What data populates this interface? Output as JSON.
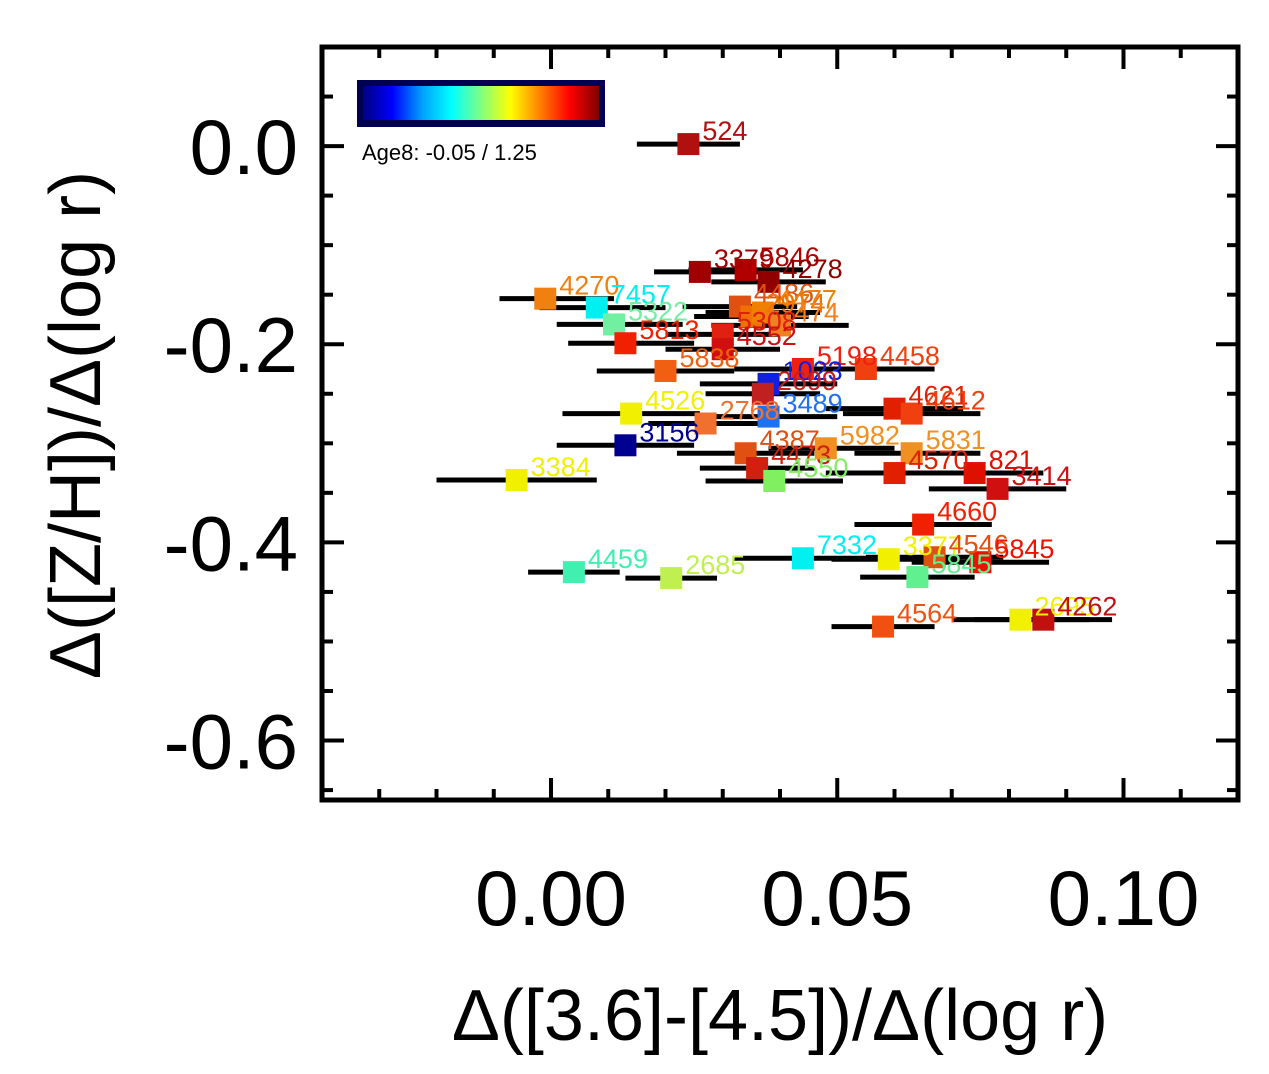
{
  "chart_data": {
    "type": "scatter",
    "xlabel": "Δ([3.6]-[4.5])/Δ(log r)",
    "ylabel": "Δ([Z/H])/Δ(log r)",
    "xlim": [
      -0.04,
      0.12
    ],
    "ylim": [
      -0.66,
      0.1
    ],
    "x_ticks": [
      {
        "value": 0.0,
        "label": "0.00"
      },
      {
        "value": 0.05,
        "label": "0.05"
      },
      {
        "value": 0.1,
        "label": "0.10"
      }
    ],
    "y_ticks": [
      {
        "value": 0.0,
        "label": "0.0"
      },
      {
        "value": -0.2,
        "label": "-0.2"
      },
      {
        "value": -0.4,
        "label": "-0.4"
      },
      {
        "value": -0.6,
        "label": "-0.6"
      }
    ],
    "colorbar": {
      "label": "Age8: -0.05 / 1.25",
      "colors": [
        "#000080",
        "#0000ff",
        "#00a0ff",
        "#00ffff",
        "#80ff80",
        "#ffff00",
        "#ff8000",
        "#ff0000",
        "#800000"
      ]
    },
    "points": [
      {
        "label": "524",
        "x": 0.024,
        "y": 0.002,
        "xerr_lo": 0.009,
        "xerr_hi": 0.009,
        "color": "#b01010"
      },
      {
        "label": "3379",
        "x": 0.026,
        "y": -0.127,
        "xerr_lo": 0.008,
        "xerr_hi": 0.012,
        "color": "#a00000"
      },
      {
        "label": "5846",
        "x": 0.034,
        "y": -0.125,
        "xerr_lo": 0.01,
        "xerr_hi": 0.01,
        "color": "#b00000"
      },
      {
        "label": "4278",
        "x": 0.038,
        "y": -0.137,
        "xerr_lo": 0.01,
        "xerr_hi": 0.01,
        "color": "#900000"
      },
      {
        "label": "4270",
        "x": -0.001,
        "y": -0.154,
        "xerr_lo": 0.008,
        "xerr_hi": 0.012,
        "color": "#f08010"
      },
      {
        "label": "7457",
        "x": 0.008,
        "y": -0.163,
        "xerr_lo": 0.01,
        "xerr_hi": 0.012,
        "color": "#00f0f0"
      },
      {
        "label": "4486",
        "x": 0.033,
        "y": -0.162,
        "xerr_lo": 0.01,
        "xerr_hi": 0.01,
        "color": "#e05010"
      },
      {
        "label": "2974",
        "x": 0.035,
        "y": -0.172,
        "xerr_lo": 0.01,
        "xerr_hi": 0.01,
        "color": "#f07000"
      },
      {
        "label": "4477",
        "x": 0.037,
        "y": -0.168,
        "xerr_lo": 0.01,
        "xerr_hi": 0.01,
        "color": "#f08000"
      },
      {
        "label": "474",
        "x": 0.04,
        "y": -0.181,
        "xerr_lo": 0.012,
        "xerr_hi": 0.012,
        "color": "#f08020"
      },
      {
        "label": "5322",
        "x": 0.011,
        "y": -0.18,
        "xerr_lo": 0.01,
        "xerr_hi": 0.012,
        "color": "#70f0a0"
      },
      {
        "label": "5813",
        "x": 0.013,
        "y": -0.199,
        "xerr_lo": 0.01,
        "xerr_hi": 0.012,
        "color": "#f02000"
      },
      {
        "label": "5308",
        "x": 0.03,
        "y": -0.19,
        "xerr_lo": 0.01,
        "xerr_hi": 0.01,
        "color": "#e02010"
      },
      {
        "label": "4552",
        "x": 0.03,
        "y": -0.205,
        "xerr_lo": 0.01,
        "xerr_hi": 0.01,
        "color": "#d01010"
      },
      {
        "label": "5838",
        "x": 0.02,
        "y": -0.227,
        "xerr_lo": 0.012,
        "xerr_hi": 0.012,
        "color": "#f06010"
      },
      {
        "label": "5198",
        "x": 0.044,
        "y": -0.225,
        "xerr_lo": 0.012,
        "xerr_hi": 0.012,
        "color": "#f02010"
      },
      {
        "label": "4458",
        "x": 0.055,
        "y": -0.225,
        "xerr_lo": 0.012,
        "xerr_hi": 0.012,
        "color": "#f04010"
      },
      {
        "label": "1023",
        "x": 0.038,
        "y": -0.24,
        "xerr_lo": 0.012,
        "xerr_hi": 0.012,
        "color": "#1020e0"
      },
      {
        "label": "2699",
        "x": 0.037,
        "y": -0.25,
        "xerr_lo": 0.01,
        "xerr_hi": 0.01,
        "color": "#c02020"
      },
      {
        "label": "4621",
        "x": 0.06,
        "y": -0.265,
        "xerr_lo": 0.012,
        "xerr_hi": 0.012,
        "color": "#e02000"
      },
      {
        "label": "4612",
        "x": 0.063,
        "y": -0.27,
        "xerr_lo": 0.012,
        "xerr_hi": 0.012,
        "color": "#f04010"
      },
      {
        "label": "4526",
        "x": 0.014,
        "y": -0.27,
        "xerr_lo": 0.012,
        "xerr_hi": 0.012,
        "color": "#f0f000"
      },
      {
        "label": "2768",
        "x": 0.027,
        "y": -0.28,
        "xerr_lo": 0.01,
        "xerr_hi": 0.012,
        "color": "#f07030"
      },
      {
        "label": "3489",
        "x": 0.038,
        "y": -0.273,
        "xerr_lo": 0.01,
        "xerr_hi": 0.012,
        "color": "#2070f0"
      },
      {
        "label": "3156",
        "x": 0.013,
        "y": -0.302,
        "xerr_lo": 0.012,
        "xerr_hi": 0.012,
        "color": "#000090"
      },
      {
        "label": "4387",
        "x": 0.034,
        "y": -0.31,
        "xerr_lo": 0.012,
        "xerr_hi": 0.012,
        "color": "#e05010"
      },
      {
        "label": "5982",
        "x": 0.048,
        "y": -0.305,
        "xerr_lo": 0.01,
        "xerr_hi": 0.012,
        "color": "#f09020"
      },
      {
        "label": "5831",
        "x": 0.063,
        "y": -0.31,
        "xerr_lo": 0.01,
        "xerr_hi": 0.012,
        "color": "#f09020"
      },
      {
        "label": "4473",
        "x": 0.036,
        "y": -0.325,
        "xerr_lo": 0.01,
        "xerr_hi": 0.01,
        "color": "#d02010"
      },
      {
        "label": "4550",
        "x": 0.039,
        "y": -0.338,
        "xerr_lo": 0.012,
        "xerr_hi": 0.012,
        "color": "#80f060"
      },
      {
        "label": "4570",
        "x": 0.06,
        "y": -0.33,
        "xerr_lo": 0.012,
        "xerr_hi": 0.012,
        "color": "#e02000"
      },
      {
        "label": "821",
        "x": 0.074,
        "y": -0.33,
        "xerr_lo": 0.012,
        "xerr_hi": 0.012,
        "color": "#e01000"
      },
      {
        "label": "3414",
        "x": 0.078,
        "y": -0.346,
        "xerr_lo": 0.012,
        "xerr_hi": 0.012,
        "color": "#d01010"
      },
      {
        "label": "3384",
        "x": -0.006,
        "y": -0.337,
        "xerr_lo": 0.014,
        "xerr_hi": 0.014,
        "color": "#f0f000"
      },
      {
        "label": "4660",
        "x": 0.065,
        "y": -0.382,
        "xerr_lo": 0.012,
        "xerr_hi": 0.012,
        "color": "#f02000"
      },
      {
        "label": "7332",
        "x": 0.044,
        "y": -0.416,
        "xerr_lo": 0.012,
        "xerr_hi": 0.012,
        "color": "#00f0f0"
      },
      {
        "label": "3377",
        "x": 0.059,
        "y": -0.417,
        "xerr_lo": 0.01,
        "xerr_hi": 0.012,
        "color": "#f0f000"
      },
      {
        "label": "4546",
        "x": 0.067,
        "y": -0.415,
        "xerr_lo": 0.012,
        "xerr_hi": 0.012,
        "color": "#e05010"
      },
      {
        "label": "5845",
        "x": 0.075,
        "y": -0.42,
        "xerr_lo": 0.012,
        "xerr_hi": 0.012,
        "color": "#f01000"
      },
      {
        "label": "4459",
        "x": 0.004,
        "y": -0.43,
        "xerr_lo": 0.008,
        "xerr_hi": 0.008,
        "color": "#40f0b0"
      },
      {
        "label": "2685",
        "x": 0.021,
        "y": -0.436,
        "xerr_lo": 0.008,
        "xerr_hi": 0.008,
        "color": "#c0f050"
      },
      {
        "label": "5845",
        "x": 0.064,
        "y": -0.435,
        "xerr_lo": 0.01,
        "xerr_hi": 0.01,
        "color": "#60f090"
      },
      {
        "label": "4564",
        "x": 0.058,
        "y": -0.485,
        "xerr_lo": 0.009,
        "xerr_hi": 0.009,
        "color": "#f05010"
      },
      {
        "label": "2695",
        "x": 0.082,
        "y": -0.478,
        "xerr_lo": 0.012,
        "xerr_hi": 0.012,
        "color": "#f0f000"
      },
      {
        "label": "4262",
        "x": 0.086,
        "y": -0.478,
        "xerr_lo": 0.012,
        "xerr_hi": 0.012,
        "color": "#c01010"
      }
    ]
  }
}
